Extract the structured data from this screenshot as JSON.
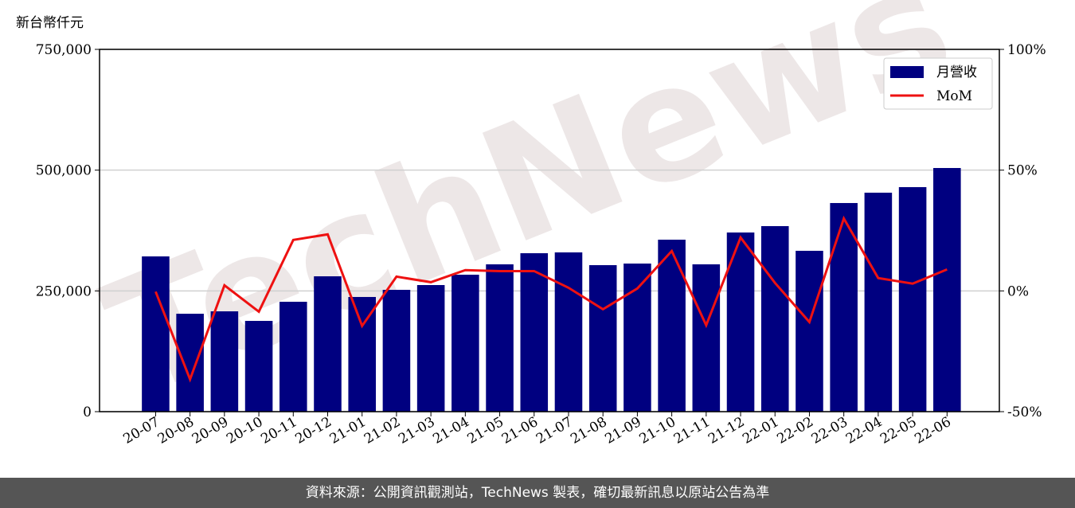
{
  "chart_data": {
    "type": "bar-line",
    "y_label": "新台幣仟元",
    "watermark": "TechNews",
    "categories": [
      "20-07",
      "20-08",
      "20-09",
      "20-10",
      "20-11",
      "20-12",
      "21-01",
      "21-02",
      "21-03",
      "21-04",
      "21-05",
      "21-06",
      "21-07",
      "21-08",
      "21-09",
      "21-10",
      "21-11",
      "21-12",
      "22-01",
      "22-02",
      "22-03",
      "22-04",
      "22-05",
      "22-06"
    ],
    "series": [
      {
        "name": "月營收",
        "type": "bar",
        "color": "#000080",
        "values": [
          321400,
          202700,
          207700,
          187900,
          227500,
          280200,
          237400,
          252200,
          262100,
          283500,
          305000,
          328000,
          329700,
          303300,
          306600,
          356000,
          305000,
          370900,
          384100,
          333000,
          431900,
          453300,
          464800,
          504400
        ]
      },
      {
        "name": "MoM",
        "type": "line",
        "axis": "y2",
        "color": "#ee1111",
        "values": [
          -0.3,
          -36.6,
          2.3,
          -8.6,
          21.1,
          23.4,
          -14.5,
          5.9,
          3.6,
          8.6,
          8.2,
          8.2,
          1.3,
          -7.6,
          1.0,
          16.5,
          -14.2,
          22.1,
          3.3,
          -12.9,
          30.0,
          5.3,
          3.0,
          8.9
        ]
      }
    ],
    "ylim": [
      0,
      750000
    ],
    "yticks": [
      0,
      {
        "value": 250000,
        "label": "250,000"
      },
      {
        "value": 500000,
        "label": "500,000"
      },
      {
        "value": 750000,
        "label": "750,000"
      }
    ],
    "y2lim": [
      -50,
      100
    ],
    "y2ticks": [
      {
        "value": -50,
        "label": "-50%"
      },
      {
        "value": 0,
        "label": "0%"
      },
      {
        "value": 50,
        "label": "50%"
      },
      {
        "value": 100,
        "label": "100%"
      }
    ],
    "grid": true,
    "legend": "upper right"
  },
  "footer": "資料來源：公開資訊觀測站，TechNews 製表，確切最新訊息以原站公告為準"
}
